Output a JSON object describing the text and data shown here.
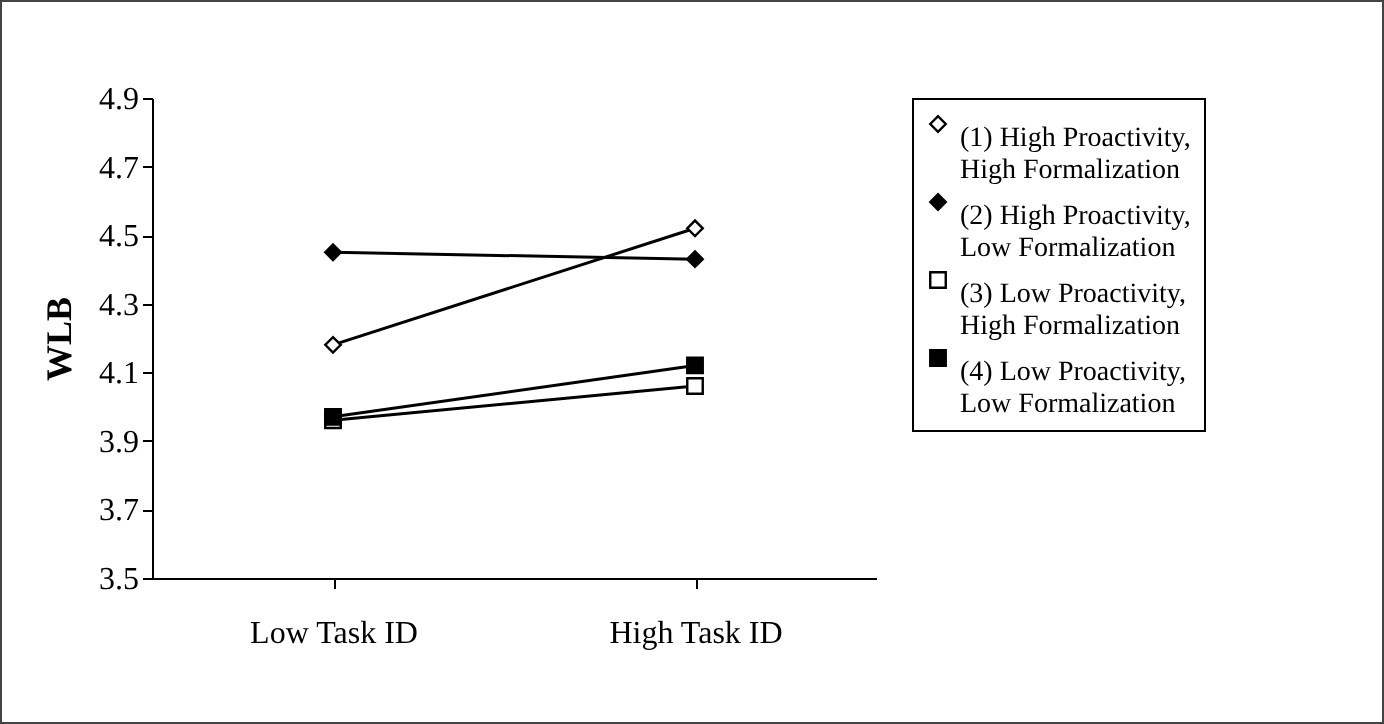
{
  "chart_data": {
    "type": "line",
    "ylabel": "WLB",
    "categories": [
      "Low Task ID",
      "High Task ID"
    ],
    "ylim": [
      3.5,
      4.9
    ],
    "yticks": [
      3.5,
      3.7,
      3.9,
      4.1,
      4.3,
      4.5,
      4.7,
      4.9
    ],
    "grid": false,
    "legend": "right",
    "series": [
      {
        "name": "(1) High Proactivity, High Formalization",
        "color": "#000000",
        "marker": "diamond",
        "values": [
          4.18,
          4.52
        ]
      },
      {
        "name": "(2) High Proactivity, Low Formalization",
        "color": "#000000",
        "marker": "diamond",
        "values": [
          4.45,
          4.43
        ]
      },
      {
        "name": "(3) Low Proactivity, High Formalization",
        "color": "#000000",
        "marker": "square",
        "values": [
          3.96,
          4.06
        ]
      },
      {
        "name": "(4) Low Proactivity, Low Formalization",
        "color": "#000000",
        "marker": "square",
        "values": [
          3.97,
          4.12
        ]
      }
    ]
  }
}
